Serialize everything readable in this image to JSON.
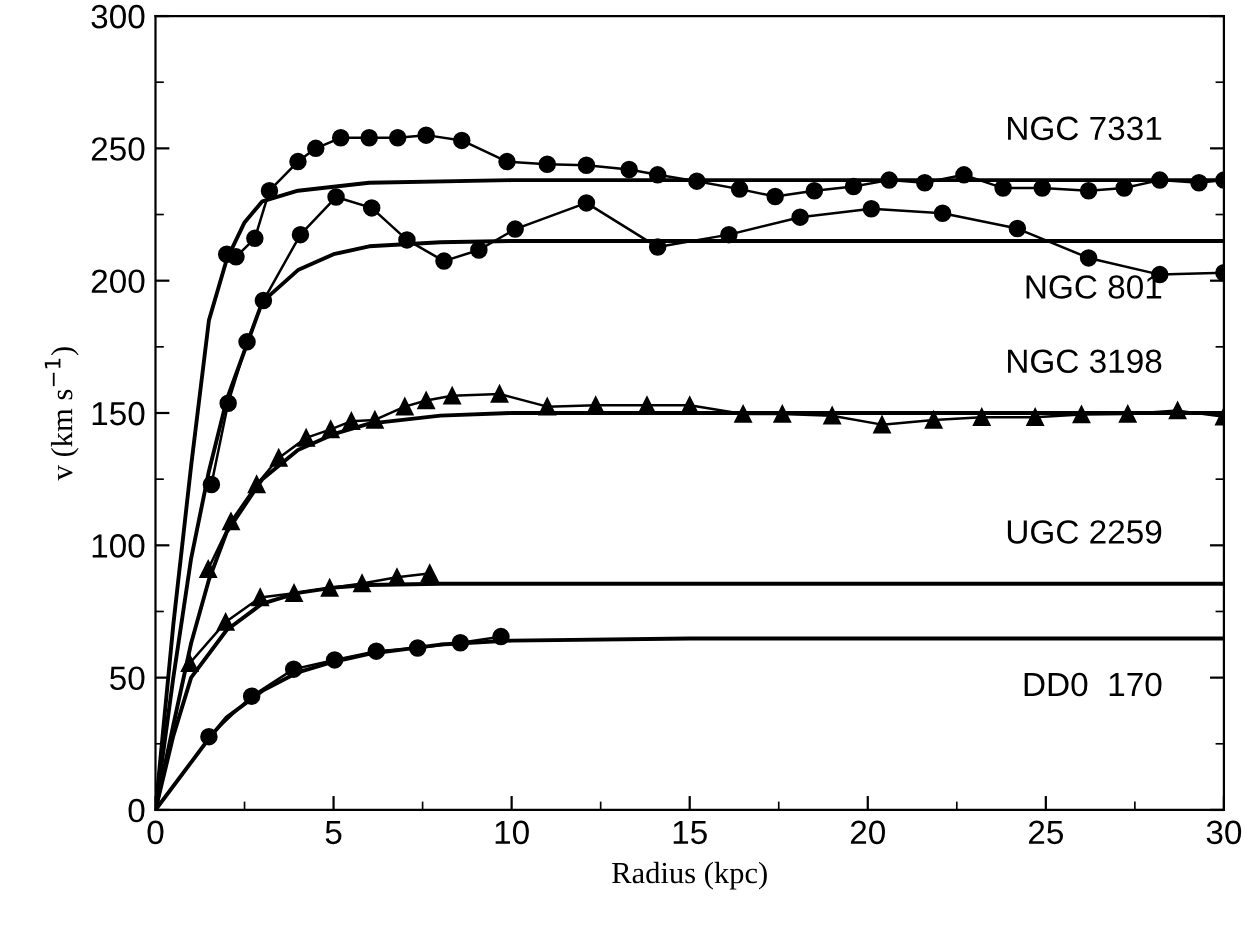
{
  "chart_data": {
    "type": "line",
    "xlabel": "Radius (kpc)",
    "ylabel": "v (km s$^{−1}$)",
    "xlim": [
      0,
      30
    ],
    "ylim": [
      0,
      300
    ],
    "xticks": [
      0,
      5,
      10,
      15,
      20,
      25,
      30
    ],
    "yticks": [
      0,
      50,
      100,
      150,
      200,
      250,
      300
    ],
    "grid": false,
    "legend": "right",
    "series": [
      {
        "color": "#000000",
        "marker": "circle",
        "x": [
          2.0,
          2.26,
          2.79,
          3.2,
          4.0,
          4.5,
          5.2,
          6.0,
          6.8,
          7.6,
          8.6,
          9.87,
          11.0,
          12.1,
          13.3,
          14.1,
          15.2,
          16.4,
          17.4,
          18.5,
          19.6,
          20.6,
          21.6,
          22.7,
          23.8,
          24.9,
          26.2,
          27.2,
          28.2,
          29.3,
          30.0
        ],
        "values": [
          210,
          209,
          216,
          234,
          245,
          250,
          254,
          254,
          254,
          255,
          253,
          245,
          244,
          243.6,
          242,
          240,
          237.6,
          234.6,
          231.8,
          234,
          235.6,
          238,
          237,
          240,
          235,
          235,
          234,
          235,
          238,
          237,
          238
        ]
      },
      {
        "color": "#000000",
        "marker": "circle",
        "x": [
          1.57,
          2.04,
          2.57,
          3.03,
          4.07,
          5.07,
          6.07,
          7.06,
          8.1,
          9.08,
          10.1,
          12.1,
          14.1,
          16.1,
          18.1,
          20.1,
          22.1,
          24.2,
          26.2,
          28.2,
          30.0
        ],
        "values": [
          123,
          153.7,
          176.9,
          192.5,
          217.4,
          231.6,
          227.5,
          215.4,
          207.4,
          211.6,
          219.5,
          229.4,
          212.7,
          217.4,
          224,
          227.2,
          225.5,
          219.7,
          208.6,
          202.3,
          203
        ]
      },
      {
        "color": "#000000",
        "marker": "triangle",
        "x": [
          1.48,
          2.12,
          2.84,
          3.46,
          4.23,
          4.92,
          5.5,
          6.16,
          7.0,
          7.6,
          8.33,
          9.66,
          11.0,
          12.36,
          13.8,
          15.0,
          16.5,
          17.6,
          19.0,
          20.4,
          21.85,
          23.2,
          24.7,
          26.0,
          27.3,
          28.7,
          30.0
        ],
        "values": [
          91,
          109,
          123,
          133,
          140.6,
          143.8,
          146.9,
          147.4,
          152.4,
          154.7,
          156.5,
          157.2,
          152.4,
          152.9,
          152.9,
          152.9,
          149.6,
          149.6,
          149,
          145.6,
          147.4,
          148.4,
          148.4,
          149.4,
          149.6,
          150.9,
          148.6
        ]
      },
      {
        "color": "#000000",
        "marker": "triangle",
        "x": [
          0.96,
          1.97,
          2.94,
          3.89,
          4.89,
          5.8,
          6.78,
          7.7
        ],
        "values": [
          55.4,
          71,
          80.3,
          81.9,
          83.9,
          85.6,
          87.9,
          89.4
        ]
      },
      {
        "color": "#000000",
        "marker": "circle",
        "x": [
          1.5,
          2.7,
          3.88,
          5.03,
          6.2,
          7.36,
          8.56,
          9.7
        ],
        "values": [
          27.7,
          43,
          53.2,
          56.7,
          60,
          61.2,
          63.2,
          65.5
        ]
      },
      {
        "name": "NGC 7331",
        "color": "#000000",
        "marker": "none",
        "x": [
          0,
          0.5,
          1,
          1.5,
          2,
          2.5,
          3,
          4,
          6,
          10,
          30
        ],
        "values": [
          0,
          70,
          130,
          185,
          208,
          222,
          230,
          234,
          237,
          238,
          238
        ]
      },
      {
        "name": "NGC 801",
        "color": "#000000",
        "marker": "none",
        "x": [
          0,
          0.5,
          1,
          1.5,
          2,
          3,
          4,
          5,
          6,
          8,
          10,
          30
        ],
        "values": [
          0,
          50,
          95,
          128,
          155,
          192,
          204,
          210,
          213,
          214.5,
          215,
          215
        ]
      },
      {
        "name": "NGC 3198",
        "color": "#000000",
        "marker": "none",
        "x": [
          0,
          0.5,
          1,
          1.5,
          2,
          3,
          4,
          5,
          6,
          8,
          10,
          30
        ],
        "values": [
          0,
          32,
          63,
          87,
          105,
          125,
          136,
          142,
          146,
          149,
          150,
          150
        ]
      },
      {
        "name": "UGC 2259",
        "color": "#000000",
        "marker": "none",
        "x": [
          0,
          0.5,
          1,
          2,
          3,
          4,
          5,
          6,
          8,
          30
        ],
        "values": [
          0,
          28,
          50,
          68,
          78,
          82,
          84,
          85,
          85.5,
          85.5
        ]
      },
      {
        "name": "DD0  170",
        "color": "#000000",
        "marker": "none",
        "x": [
          0,
          1,
          1.5,
          2,
          3,
          4,
          5,
          6,
          8,
          10,
          15,
          30
        ],
        "values": [
          0,
          18,
          27,
          35,
          45,
          52,
          56,
          59,
          62.5,
          64,
          64.8,
          64.8
        ]
      }
    ]
  }
}
